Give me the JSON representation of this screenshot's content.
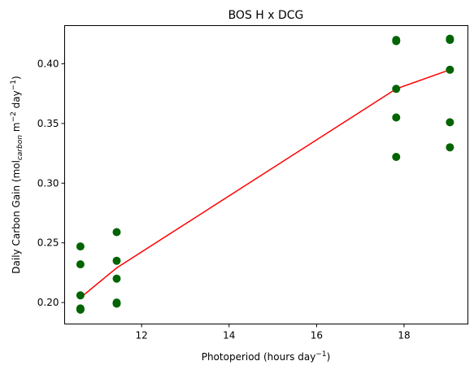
{
  "chart_data": {
    "type": "scatter",
    "title": "BOS H x DCG",
    "xlabel": "Photoperiod (hours day",
    "xlabel_sup": "−1",
    "xlabel_tail": ")",
    "ylabel": "Daily Carbon Gain (mol",
    "ylabel_sub": "carbon",
    "ylabel_mid": " m",
    "ylabel_sup1": "−2",
    "ylabel_mid2": " day",
    "ylabel_sup2": "−1",
    "ylabel_tail": ")",
    "xlim": [
      10.24,
      19.46
    ],
    "ylim": [
      0.182,
      0.432
    ],
    "x_ticks": [
      12,
      14,
      16,
      18
    ],
    "x_tick_labels": [
      "12",
      "14",
      "16",
      "18"
    ],
    "y_ticks": [
      0.2,
      0.25,
      0.3,
      0.35,
      0.4
    ],
    "y_tick_labels": [
      "0.20",
      "0.25",
      "0.30",
      "0.35",
      "0.40"
    ],
    "grid": false,
    "series": [
      {
        "kind": "scatter",
        "color": "#006400",
        "points": [
          {
            "x": 10.6,
            "y": 0.194
          },
          {
            "x": 10.6,
            "y": 0.195
          },
          {
            "x": 10.6,
            "y": 0.206
          },
          {
            "x": 10.6,
            "y": 0.232
          },
          {
            "x": 10.6,
            "y": 0.247
          },
          {
            "x": 11.43,
            "y": 0.199
          },
          {
            "x": 11.43,
            "y": 0.2
          },
          {
            "x": 11.43,
            "y": 0.22
          },
          {
            "x": 11.43,
            "y": 0.235
          },
          {
            "x": 11.43,
            "y": 0.259
          },
          {
            "x": 17.82,
            "y": 0.322
          },
          {
            "x": 17.82,
            "y": 0.355
          },
          {
            "x": 17.82,
            "y": 0.379
          },
          {
            "x": 17.82,
            "y": 0.419
          },
          {
            "x": 17.82,
            "y": 0.42
          },
          {
            "x": 19.05,
            "y": 0.33
          },
          {
            "x": 19.05,
            "y": 0.351
          },
          {
            "x": 19.05,
            "y": 0.395
          },
          {
            "x": 19.05,
            "y": 0.421
          },
          {
            "x": 19.05,
            "y": 0.42
          }
        ]
      },
      {
        "kind": "line",
        "color": "#ff0000",
        "points": [
          {
            "x": 10.6,
            "y": 0.204
          },
          {
            "x": 11.43,
            "y": 0.229
          },
          {
            "x": 17.82,
            "y": 0.379
          },
          {
            "x": 19.05,
            "y": 0.395
          }
        ]
      }
    ]
  }
}
